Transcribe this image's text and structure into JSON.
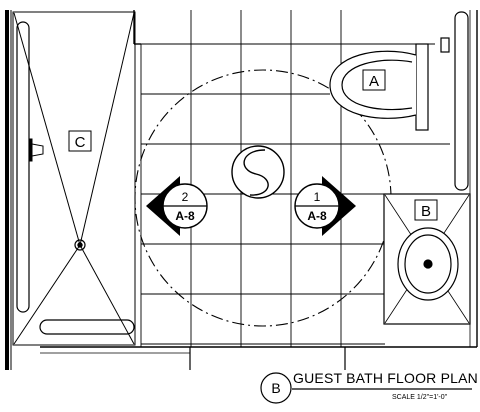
{
  "drawing": {
    "title": "GUEST BATH FLOOR PLAN",
    "scale": "SCALE 1/2\"=1'-0\"",
    "detail_marker": "B"
  },
  "fixtures": {
    "toilet_tag": "A",
    "lavatory_tag": "B",
    "shower_tag": "C"
  },
  "section_markers": [
    {
      "number": "2",
      "sheet": "A-8"
    },
    {
      "number": "1",
      "sheet": "A-8"
    }
  ]
}
